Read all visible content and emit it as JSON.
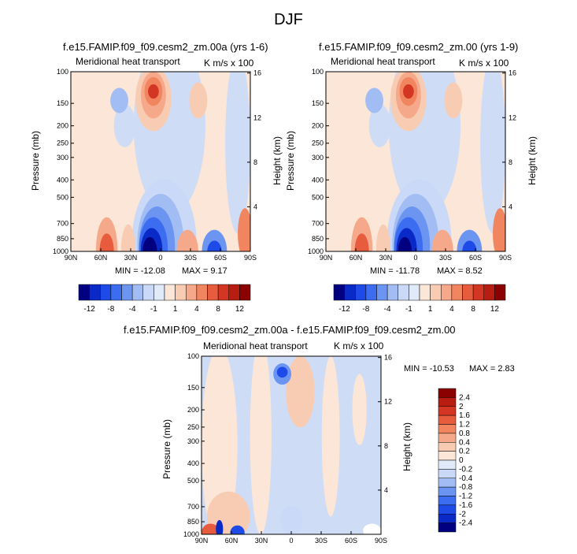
{
  "title": "DJF",
  "colors": {
    "neg": [
      "#000080",
      "#0a2ac8",
      "#1e4be8",
      "#3c6cf0",
      "#6c95f2",
      "#a2bdf4",
      "#cad9f7",
      "#e1eaf8"
    ],
    "pos": [
      "#fbe6d8",
      "#f8ccb2",
      "#f5a98a",
      "#f08560",
      "#e85c3e",
      "#d43624",
      "#b81d12",
      "#8b0000"
    ]
  },
  "chart_data": [
    {
      "type": "contour",
      "title": "f.e15.FAMIP.f09_f09.cesm2_zm.00a (yrs 1-6)",
      "left_label": "Meridional heat transport",
      "units": "K m/s x 100",
      "ylabel": "Pressure (mb)",
      "ylabel_right": "Height (km)",
      "x_ticks": [
        "90N",
        "60N",
        "30N",
        "0",
        "30S",
        "60S",
        "90S"
      ],
      "y_ticks": [
        "100",
        "150",
        "200",
        "250",
        "300",
        "400",
        "500",
        "700",
        "850",
        "1000"
      ],
      "y_right_ticks": [
        "16",
        "12",
        "8",
        "4"
      ],
      "min_label": "MIN = -12.08",
      "max_label": "MAX =   9.17",
      "min": -12.08,
      "max": 9.17
    },
    {
      "type": "contour",
      "title": "f.e15.FAMIP.f09_f09.cesm2_zm.00 (yrs 1-9)",
      "left_label": "Meridional heat transport",
      "units": "K m/s x 100",
      "ylabel": "Pressure (mb)",
      "ylabel_right": "Height (km)",
      "x_ticks": [
        "90N",
        "60N",
        "30N",
        "0",
        "30S",
        "60S",
        "90S"
      ],
      "y_ticks": [
        "100",
        "150",
        "200",
        "250",
        "300",
        "400",
        "500",
        "700",
        "850",
        "1000"
      ],
      "y_right_ticks": [
        "16",
        "12",
        "8",
        "4"
      ],
      "min_label": "MIN = -11.78",
      "max_label": "MAX =   8.52",
      "min": -11.78,
      "max": 8.52
    },
    {
      "type": "contour",
      "title": "f.e15.FAMIP.f09_f09.cesm2_zm.00a - f.e15.FAMIP.f09_f09.cesm2_zm.00",
      "left_label": "Meridional heat transport",
      "units": "K m/s x 100",
      "ylabel": "Pressure (mb)",
      "ylabel_right": "Height (km)",
      "x_ticks": [
        "90N",
        "60N",
        "30N",
        "0",
        "30S",
        "60S",
        "90S"
      ],
      "y_ticks": [
        "100",
        "150",
        "200",
        "250",
        "300",
        "400",
        "500",
        "700",
        "850",
        "1000"
      ],
      "y_right_ticks": [
        "16",
        "12",
        "8",
        "4"
      ],
      "min_label": "MIN = -10.53",
      "max_label": "MAX =   2.83",
      "min": -10.53,
      "max": 2.83
    }
  ],
  "colorbar_top": {
    "labels": [
      "-12",
      "-8",
      "-4",
      "-1",
      "1",
      "4",
      "8",
      "12"
    ]
  },
  "colorbar_diff": {
    "labels": [
      "2.4",
      "2",
      "1.6",
      "1.2",
      "0.8",
      "0.4",
      "0.2",
      "0",
      "-0.2",
      "-0.4",
      "-0.8",
      "-1.2",
      "-1.6",
      "-2",
      "-2.4"
    ]
  }
}
